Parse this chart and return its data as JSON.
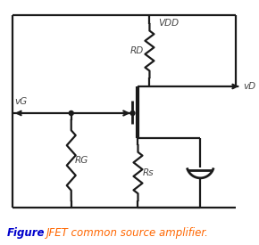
{
  "caption_label": "Figure",
  "caption_text": "JFET common source amplifier.",
  "caption_label_color": "#0000cc",
  "caption_text_color": "#ff6600",
  "bg_color": "#ffffff",
  "line_color": "#1a1a1a",
  "label_color": "#444444",
  "figsize": [
    2.9,
    2.75
  ],
  "dpi": 100,
  "vG_label": "vG",
  "vD_label": "vD",
  "VDD_label": "VDD",
  "RD_label": "RD",
  "RG_label": "RG",
  "RS_label": "Rs"
}
